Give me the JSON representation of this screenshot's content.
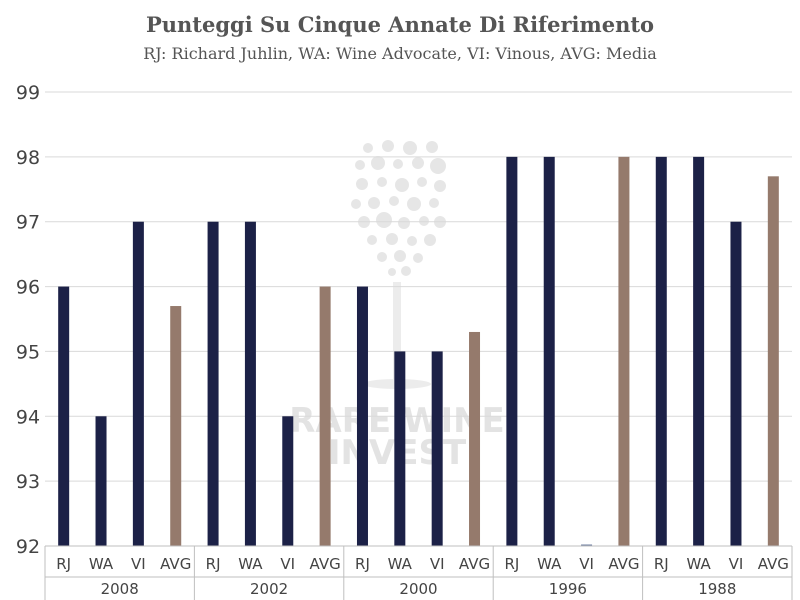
{
  "title": "Punteggi Su Cinque Annate Di Riferimento",
  "subtitle": "RJ: Richard Juhlin, WA: Wine Advocate, VI: Vinous, AVG: Media",
  "watermark": {
    "line1": "RARE WINE",
    "line2": "INVEST"
  },
  "colors": {
    "critic": "#1c2147",
    "average": "#957a6c",
    "grid": "#d9d9d9",
    "axis": "#bfbfbf"
  },
  "chart_data": {
    "type": "bar",
    "title": "Punteggi Su Cinque Annate Di Riferimento",
    "subtitle": "RJ: Richard Juhlin, WA: Wine Advocate, VI: Vinous, AVG: Media",
    "xlabel": "",
    "ylabel": "",
    "ylim": [
      92,
      99
    ],
    "yticks": [
      92,
      93,
      94,
      95,
      96,
      97,
      98,
      99
    ],
    "grid": true,
    "groups": [
      {
        "label": "2008",
        "categories": [
          "RJ",
          "WA",
          "VI",
          "AVG"
        ],
        "values": [
          96,
          94,
          97,
          95.7
        ]
      },
      {
        "label": "2002",
        "categories": [
          "RJ",
          "WA",
          "VI",
          "AVG"
        ],
        "values": [
          97,
          97,
          94,
          96
        ]
      },
      {
        "label": "2000",
        "categories": [
          "RJ",
          "WA",
          "VI",
          "AVG"
        ],
        "values": [
          96,
          95,
          95,
          95.3
        ]
      },
      {
        "label": "1996",
        "categories": [
          "RJ",
          "WA",
          "VI",
          "AVG"
        ],
        "values": [
          98,
          98,
          null,
          98
        ]
      },
      {
        "label": "1988",
        "categories": [
          "RJ",
          "WA",
          "VI",
          "AVG"
        ],
        "values": [
          98,
          98,
          97,
          97.7
        ]
      }
    ]
  }
}
